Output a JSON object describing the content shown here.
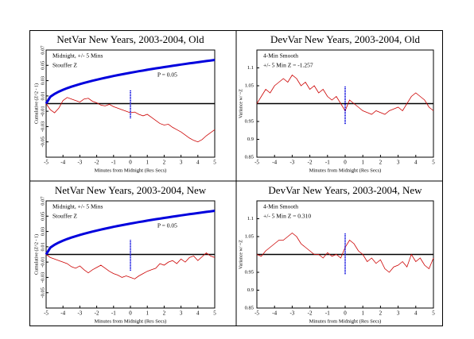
{
  "chart_data": [
    {
      "type": "line",
      "title": "NetVar New Years, 2003-2004, Old",
      "xlabel": "Minutes from Midnight (Res Secs)",
      "ylabel": "Cumulative (Z^2 - 1)",
      "annotations": [
        "Midnight, +/- 5 Mins",
        "Stouffer Z"
      ],
      "annotation_color": "#cc0000",
      "x": [
        -5,
        -4.75,
        -4.5,
        -4.25,
        -4,
        -3.75,
        -3.5,
        -3.25,
        -3,
        -2.75,
        -2.5,
        -2.25,
        -2,
        -1.75,
        -1.5,
        -1.25,
        -1,
        -0.75,
        -0.5,
        -0.25,
        0,
        0.25,
        0.5,
        0.75,
        1,
        1.25,
        1.5,
        1.75,
        2,
        2.25,
        2.5,
        2.75,
        3,
        3.25,
        3.5,
        3.75,
        4,
        4.25,
        4.5,
        4.75,
        5
      ],
      "series": [
        {
          "color": "#cc0000",
          "values": [
            0,
            -0.008,
            -0.012,
            -0.006,
            0.004,
            0.008,
            0.006,
            0.004,
            0.002,
            0.006,
            0.007,
            0.003,
            0.001,
            -0.002,
            -0.003,
            -0.001,
            -0.004,
            -0.006,
            -0.008,
            -0.01,
            -0.012,
            -0.011,
            -0.014,
            -0.016,
            -0.014,
            -0.018,
            -0.022,
            -0.026,
            -0.028,
            -0.027,
            -0.031,
            -0.034,
            -0.037,
            -0.041,
            -0.045,
            -0.048,
            -0.05,
            -0.047,
            -0.042,
            -0.038,
            -0.034
          ]
        },
        {
          "name": "P = 0.05",
          "color": "#0000dd",
          "values": [
            0,
            0.009,
            0.0127,
            0.0156,
            0.018,
            0.0202,
            0.0221,
            0.0238,
            0.0255,
            0.027,
            0.0285,
            0.0299,
            0.0312,
            0.0325,
            0.0337,
            0.0349,
            0.0361,
            0.0372,
            0.0382,
            0.0393,
            0.0403,
            0.0413,
            0.0423,
            0.0432,
            0.0442,
            0.0451,
            0.046,
            0.0468,
            0.0477,
            0.0485,
            0.0494,
            0.0502,
            0.051,
            0.0518,
            0.0526,
            0.0533,
            0.0541,
            0.0548,
            0.0556,
            0.0563,
            0.057
          ]
        }
      ],
      "marker": {
        "x": 0,
        "range": [
          -0.019,
          0.018
        ],
        "color": "#0000dd"
      },
      "baseline": 0,
      "xlim": [
        -5,
        5
      ],
      "xticks": [
        -5,
        -4,
        -3,
        -2,
        -1,
        0,
        1,
        2,
        3,
        4,
        5
      ],
      "ylim": [
        -0.07,
        0.07
      ],
      "yticks": [
        -0.05,
        -0.03,
        -0.01,
        0.01,
        0.03,
        0.05,
        0.07
      ]
    },
    {
      "type": "line",
      "title": "DevVar New Years, 2003-2004, Old",
      "xlabel": "Minutes from Midnight (Res Secs)",
      "ylabel": "Variance w/ ~Z",
      "annotations": [
        "4-Min Smooth",
        "+/- 5 Min Z = -1.257"
      ],
      "annotation_color": "#cc0000",
      "x": [
        -5,
        -4.75,
        -4.5,
        -4.25,
        -4,
        -3.75,
        -3.5,
        -3.25,
        -3,
        -2.75,
        -2.5,
        -2.25,
        -2,
        -1.75,
        -1.5,
        -1.25,
        -1,
        -0.75,
        -0.5,
        -0.25,
        0,
        0.25,
        0.5,
        0.75,
        1,
        1.25,
        1.5,
        1.75,
        2,
        2.25,
        2.5,
        2.75,
        3,
        3.25,
        3.5,
        3.75,
        4,
        4.25,
        4.5,
        4.75,
        5
      ],
      "series": [
        {
          "color": "#cc0000",
          "values": [
            1.0,
            1.02,
            1.04,
            1.03,
            1.05,
            1.06,
            1.07,
            1.06,
            1.08,
            1.07,
            1.05,
            1.06,
            1.04,
            1.05,
            1.03,
            1.04,
            1.02,
            1.01,
            1.02,
            1.0,
            0.98,
            1.01,
            1.0,
            0.99,
            0.98,
            0.975,
            0.97,
            0.98,
            0.975,
            0.97,
            0.98,
            0.985,
            0.99,
            0.98,
            1.0,
            1.02,
            1.03,
            1.02,
            1.01,
            0.99,
            0.98
          ]
        }
      ],
      "marker": {
        "x": 0,
        "range": [
          0.943,
          1.048
        ],
        "color": "#0000dd"
      },
      "baseline": 1,
      "xlim": [
        -5,
        5
      ],
      "xticks": [
        -5,
        -4,
        -3,
        -2,
        -1,
        0,
        1,
        2,
        3,
        4,
        5
      ],
      "ylim": [
        0.85,
        1.15
      ],
      "yticks": [
        0.85,
        0.9,
        0.95,
        1.05,
        1.1
      ]
    },
    {
      "type": "line",
      "title": "NetVar New Years, 2003-2004, New",
      "xlabel": "Minutes from Midnight (Res Secs)",
      "ylabel": "Cumulative (Z^2 - 1)",
      "annotations": [
        "Midnight, +/- 5 Mins",
        "Stouffer Z"
      ],
      "annotation_color": "#cc0000",
      "x": [
        -5,
        -4.75,
        -4.5,
        -4.25,
        -4,
        -3.75,
        -3.5,
        -3.25,
        -3,
        -2.75,
        -2.5,
        -2.25,
        -2,
        -1.75,
        -1.5,
        -1.25,
        -1,
        -0.75,
        -0.5,
        -0.25,
        0,
        0.25,
        0.5,
        0.75,
        1,
        1.25,
        1.5,
        1.75,
        2,
        2.25,
        2.5,
        2.75,
        3,
        3.25,
        3.5,
        3.75,
        4,
        4.25,
        4.5,
        4.75,
        5
      ],
      "series": [
        {
          "color": "#cc0000",
          "values": [
            0,
            -0.004,
            -0.006,
            -0.008,
            -0.01,
            -0.012,
            -0.016,
            -0.018,
            -0.015,
            -0.02,
            -0.024,
            -0.02,
            -0.017,
            -0.014,
            -0.018,
            -0.022,
            -0.025,
            -0.027,
            -0.03,
            -0.028,
            -0.03,
            -0.032,
            -0.028,
            -0.025,
            -0.022,
            -0.02,
            -0.018,
            -0.012,
            -0.014,
            -0.01,
            -0.008,
            -0.012,
            -0.006,
            -0.01,
            -0.004,
            -0.002,
            -0.008,
            -0.003,
            0.002,
            -0.002,
            -0.004
          ]
        },
        {
          "name": "P = 0.05",
          "color": "#0000dd",
          "values": [
            0,
            0.009,
            0.0127,
            0.0156,
            0.018,
            0.0202,
            0.0221,
            0.0238,
            0.0255,
            0.027,
            0.0285,
            0.0299,
            0.0312,
            0.0325,
            0.0337,
            0.0349,
            0.0361,
            0.0372,
            0.0382,
            0.0393,
            0.0403,
            0.0413,
            0.0423,
            0.0432,
            0.0442,
            0.0451,
            0.046,
            0.0468,
            0.0477,
            0.0485,
            0.0494,
            0.0502,
            0.051,
            0.0518,
            0.0526,
            0.0533,
            0.0541,
            0.0548,
            0.0556,
            0.0563,
            0.057
          ]
        }
      ],
      "marker": {
        "x": 0,
        "range": [
          -0.021,
          0.019
        ],
        "color": "#0000dd"
      },
      "baseline": 0,
      "xlim": [
        -5,
        5
      ],
      "xticks": [
        -5,
        -4,
        -3,
        -2,
        -1,
        0,
        1,
        2,
        3,
        4,
        5
      ],
      "ylim": [
        -0.07,
        0.07
      ],
      "yticks": [
        -0.05,
        -0.03,
        -0.01,
        0.01,
        0.03,
        0.05,
        0.07
      ]
    },
    {
      "type": "line",
      "title": "DevVar New Years, 2003-2004, New",
      "xlabel": "Minutes from Midnight (Res Secs)",
      "ylabel": "Variance w/ ~Z",
      "annotations": [
        "4-Min Smooth",
        "+/- 5 Min Z = 0.310"
      ],
      "annotation_color": "#cc0000",
      "x": [
        -5,
        -4.75,
        -4.5,
        -4.25,
        -4,
        -3.75,
        -3.5,
        -3.25,
        -3,
        -2.75,
        -2.5,
        -2.25,
        -2,
        -1.75,
        -1.5,
        -1.25,
        -1,
        -0.75,
        -0.5,
        -0.25,
        0,
        0.25,
        0.5,
        0.75,
        1,
        1.25,
        1.5,
        1.75,
        2,
        2.25,
        2.5,
        2.75,
        3,
        3.25,
        3.5,
        3.75,
        4,
        4.25,
        4.5,
        4.75,
        5
      ],
      "series": [
        {
          "color": "#cc0000",
          "values": [
            1.0,
            0.995,
            1.01,
            1.02,
            1.03,
            1.04,
            1.04,
            1.05,
            1.06,
            1.05,
            1.03,
            1.02,
            1.01,
            1.0,
            1.0,
            0.99,
            1.005,
            0.995,
            1.0,
            0.99,
            1.02,
            1.04,
            1.03,
            1.01,
            1.0,
            0.98,
            0.99,
            0.975,
            0.985,
            0.96,
            0.95,
            0.965,
            0.97,
            0.98,
            0.965,
            1.0,
            0.98,
            0.99,
            0.97,
            0.96,
            0.99
          ]
        }
      ],
      "marker": {
        "x": 0,
        "range": [
          0.945,
          1.06
        ],
        "color": "#0000dd"
      },
      "baseline": 1,
      "xlim": [
        -5,
        5
      ],
      "xticks": [
        -5,
        -4,
        -3,
        -2,
        -1,
        0,
        1,
        2,
        3,
        4,
        5
      ],
      "ylim": [
        0.85,
        1.15
      ],
      "yticks": [
        0.85,
        0.9,
        0.95,
        1.05,
        1.1
      ]
    }
  ]
}
